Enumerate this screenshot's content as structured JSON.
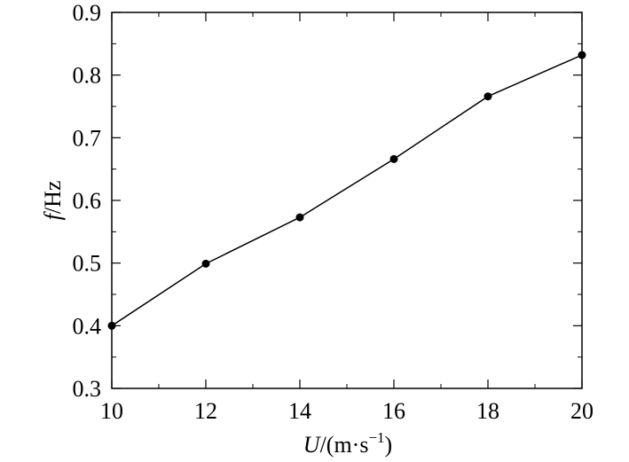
{
  "chart_data": {
    "type": "line",
    "xlabel": "U/(m·s−1)",
    "ylabel": "f/Hz",
    "xlim": [
      10,
      20
    ],
    "ylim": [
      0.3,
      0.9
    ],
    "x_ticks": [
      10,
      12,
      14,
      16,
      18,
      20
    ],
    "y_ticks": [
      0.3,
      0.4,
      0.5,
      0.6,
      0.7,
      0.8,
      0.9
    ],
    "x_tick_labels": [
      "10",
      "12",
      "14",
      "16",
      "18",
      "20"
    ],
    "y_tick_labels": [
      "0.3",
      "0.4",
      "0.5",
      "0.6",
      "0.7",
      "0.8",
      "0.9"
    ],
    "grid": false,
    "series": [
      {
        "x": [
          10,
          12,
          14,
          16,
          18,
          20
        ],
        "values": [
          0.4,
          0.499,
          0.573,
          0.666,
          0.766,
          0.832
        ],
        "color": "#000000",
        "marker": "circle"
      }
    ]
  }
}
